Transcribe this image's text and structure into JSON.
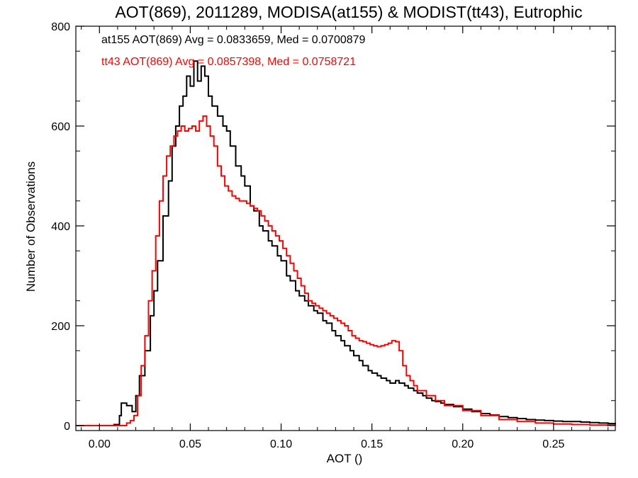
{
  "chart_data": {
    "type": "line",
    "title": "AOT(869), 2011289, MODISA(at155) & MODIST(tt43), Eutrophic",
    "xlabel": "AOT ()",
    "ylabel": "Number of Observations",
    "xlim": [
      -0.013,
      0.284
    ],
    "ylim": [
      -10,
      800
    ],
    "xticks": [
      0.0,
      0.05,
      0.1,
      0.15,
      0.2,
      0.25
    ],
    "xtick_labels": [
      "0.00",
      "0.05",
      "0.10",
      "0.15",
      "0.20",
      "0.25"
    ],
    "yticks": [
      0,
      200,
      400,
      600,
      800
    ],
    "ytick_labels": [
      "0",
      "200",
      "400",
      "600",
      "800"
    ],
    "grid": false,
    "step": true,
    "annotations": [
      {
        "text": "at155 AOT(869) Avg = 0.0833659, Med = 0.0700879",
        "color": "#000000"
      },
      {
        "text": "tt43 AOT(869) Avg = 0.0857398, Med = 0.0758721",
        "color": "#ff0000"
      }
    ],
    "series": [
      {
        "color": "#000000",
        "points": [
          [
            -0.013,
            0
          ],
          [
            0.0,
            0
          ],
          [
            0.008,
            2
          ],
          [
            0.011,
            20
          ],
          [
            0.012,
            45
          ],
          [
            0.015,
            40
          ],
          [
            0.018,
            28
          ],
          [
            0.02,
            60
          ],
          [
            0.022,
            100
          ],
          [
            0.025,
            150
          ],
          [
            0.028,
            220
          ],
          [
            0.03,
            270
          ],
          [
            0.032,
            330
          ],
          [
            0.035,
            420
          ],
          [
            0.038,
            490
          ],
          [
            0.04,
            560
          ],
          [
            0.042,
            600
          ],
          [
            0.044,
            640
          ],
          [
            0.046,
            660
          ],
          [
            0.048,
            700
          ],
          [
            0.05,
            680
          ],
          [
            0.052,
            730
          ],
          [
            0.054,
            690
          ],
          [
            0.056,
            720
          ],
          [
            0.058,
            700
          ],
          [
            0.06,
            660
          ],
          [
            0.062,
            640
          ],
          [
            0.065,
            620
          ],
          [
            0.068,
            600
          ],
          [
            0.07,
            590
          ],
          [
            0.072,
            560
          ],
          [
            0.075,
            520
          ],
          [
            0.078,
            500
          ],
          [
            0.08,
            480
          ],
          [
            0.083,
            440
          ],
          [
            0.085,
            430
          ],
          [
            0.088,
            400
          ],
          [
            0.09,
            390
          ],
          [
            0.093,
            370
          ],
          [
            0.095,
            360
          ],
          [
            0.098,
            340
          ],
          [
            0.1,
            330
          ],
          [
            0.103,
            300
          ],
          [
            0.105,
            290
          ],
          [
            0.108,
            270
          ],
          [
            0.11,
            260
          ],
          [
            0.113,
            250
          ],
          [
            0.115,
            240
          ],
          [
            0.118,
            230
          ],
          [
            0.12,
            225
          ],
          [
            0.123,
            210
          ],
          [
            0.125,
            205
          ],
          [
            0.128,
            190
          ],
          [
            0.13,
            180
          ],
          [
            0.133,
            170
          ],
          [
            0.135,
            160
          ],
          [
            0.138,
            150
          ],
          [
            0.14,
            140
          ],
          [
            0.143,
            130
          ],
          [
            0.145,
            120
          ],
          [
            0.148,
            110
          ],
          [
            0.15,
            105
          ],
          [
            0.153,
            100
          ],
          [
            0.155,
            95
          ],
          [
            0.158,
            90
          ],
          [
            0.16,
            85
          ],
          [
            0.163,
            90
          ],
          [
            0.165,
            85
          ],
          [
            0.168,
            80
          ],
          [
            0.17,
            75
          ],
          [
            0.173,
            70
          ],
          [
            0.175,
            65
          ],
          [
            0.178,
            60
          ],
          [
            0.18,
            55
          ],
          [
            0.183,
            50
          ],
          [
            0.185,
            48
          ],
          [
            0.188,
            45
          ],
          [
            0.19,
            42
          ],
          [
            0.195,
            38
          ],
          [
            0.2,
            33
          ],
          [
            0.205,
            28
          ],
          [
            0.21,
            24
          ],
          [
            0.215,
            21
          ],
          [
            0.22,
            18
          ],
          [
            0.225,
            16
          ],
          [
            0.23,
            14
          ],
          [
            0.235,
            12
          ],
          [
            0.24,
            11
          ],
          [
            0.245,
            10
          ],
          [
            0.25,
            9
          ],
          [
            0.255,
            8
          ],
          [
            0.26,
            8
          ],
          [
            0.265,
            7
          ],
          [
            0.27,
            6
          ],
          [
            0.275,
            5
          ],
          [
            0.28,
            4
          ],
          [
            0.284,
            3
          ]
        ]
      },
      {
        "color": "#ff0000",
        "points": [
          [
            -0.013,
            0
          ],
          [
            0.012,
            0
          ],
          [
            0.015,
            5
          ],
          [
            0.017,
            10
          ],
          [
            0.019,
            20
          ],
          [
            0.021,
            60
          ],
          [
            0.023,
            120
          ],
          [
            0.025,
            180
          ],
          [
            0.027,
            250
          ],
          [
            0.029,
            310
          ],
          [
            0.031,
            380
          ],
          [
            0.033,
            450
          ],
          [
            0.035,
            500
          ],
          [
            0.037,
            540
          ],
          [
            0.039,
            560
          ],
          [
            0.041,
            580
          ],
          [
            0.043,
            590
          ],
          [
            0.045,
            600
          ],
          [
            0.047,
            590
          ],
          [
            0.049,
            595
          ],
          [
            0.051,
            600
          ],
          [
            0.053,
            590
          ],
          [
            0.055,
            610
          ],
          [
            0.057,
            620
          ],
          [
            0.059,
            600
          ],
          [
            0.061,
            580
          ],
          [
            0.063,
            560
          ],
          [
            0.065,
            520
          ],
          [
            0.067,
            500
          ],
          [
            0.069,
            480
          ],
          [
            0.071,
            470
          ],
          [
            0.073,
            460
          ],
          [
            0.075,
            455
          ],
          [
            0.077,
            450
          ],
          [
            0.079,
            450
          ],
          [
            0.081,
            445
          ],
          [
            0.083,
            440
          ],
          [
            0.085,
            435
          ],
          [
            0.087,
            430
          ],
          [
            0.089,
            420
          ],
          [
            0.091,
            410
          ],
          [
            0.093,
            400
          ],
          [
            0.095,
            390
          ],
          [
            0.097,
            380
          ],
          [
            0.099,
            370
          ],
          [
            0.101,
            355
          ],
          [
            0.103,
            340
          ],
          [
            0.105,
            325
          ],
          [
            0.107,
            310
          ],
          [
            0.109,
            295
          ],
          [
            0.111,
            280
          ],
          [
            0.113,
            265
          ],
          [
            0.115,
            250
          ],
          [
            0.117,
            245
          ],
          [
            0.119,
            240
          ],
          [
            0.121,
            235
          ],
          [
            0.123,
            230
          ],
          [
            0.125,
            225
          ],
          [
            0.127,
            220
          ],
          [
            0.129,
            215
          ],
          [
            0.131,
            210
          ],
          [
            0.133,
            205
          ],
          [
            0.135,
            200
          ],
          [
            0.137,
            190
          ],
          [
            0.139,
            180
          ],
          [
            0.141,
            175
          ],
          [
            0.143,
            170
          ],
          [
            0.145,
            168
          ],
          [
            0.147,
            165
          ],
          [
            0.149,
            162
          ],
          [
            0.151,
            160
          ],
          [
            0.153,
            158
          ],
          [
            0.155,
            160
          ],
          [
            0.157,
            162
          ],
          [
            0.159,
            165
          ],
          [
            0.161,
            170
          ],
          [
            0.163,
            168
          ],
          [
            0.165,
            150
          ],
          [
            0.167,
            120
          ],
          [
            0.169,
            100
          ],
          [
            0.171,
            90
          ],
          [
            0.173,
            80
          ],
          [
            0.175,
            70
          ],
          [
            0.18,
            60
          ],
          [
            0.185,
            50
          ],
          [
            0.19,
            40
          ],
          [
            0.2,
            30
          ],
          [
            0.21,
            20
          ],
          [
            0.22,
            12
          ],
          [
            0.23,
            8
          ],
          [
            0.24,
            5
          ],
          [
            0.25,
            3
          ],
          [
            0.26,
            2
          ],
          [
            0.27,
            1
          ],
          [
            0.284,
            0
          ]
        ]
      }
    ]
  }
}
